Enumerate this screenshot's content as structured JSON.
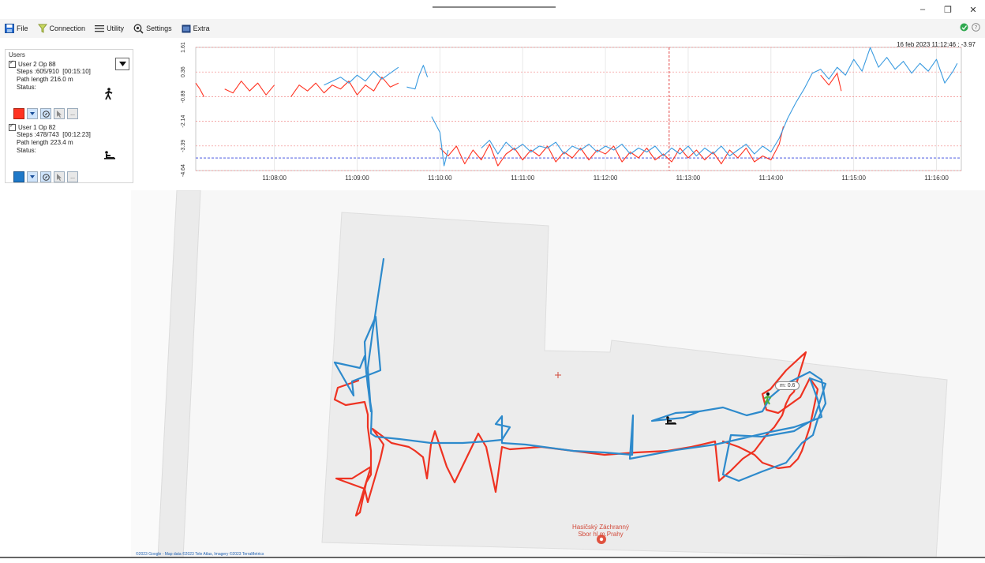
{
  "menu": {
    "file": "File",
    "connection": "Connection",
    "utility": "Utility",
    "settings": "Settings",
    "extra": "Extra"
  },
  "users_panel": {
    "title": "Users",
    "users": [
      {
        "name": "User 2 Op 88",
        "steps": "Steps :605/910",
        "duration": "[00:15:10]",
        "path_length": "Path length 216.0 m",
        "status_label": "Status:",
        "color": "#ff3322"
      },
      {
        "name": "User 1 Op 82",
        "steps": "Steps :478/743",
        "duration": "[00:12:23]",
        "path_length": "Path length 223.4 m",
        "status_label": "Status:",
        "color": "#1e78c8"
      }
    ],
    "more_label": "..."
  },
  "chart_data": {
    "type": "line",
    "timestamp_readout": "16 feb 2023 11:12:46 ; -3.97",
    "y_tick_labels": [
      "1.61",
      "0.36",
      "-0.89",
      "-2.14",
      "-3.39",
      "-4.64"
    ],
    "y_ticks": [
      1.61,
      0.36,
      -0.89,
      -2.14,
      -3.39,
      -4.64
    ],
    "ylim": [
      -4.64,
      1.61
    ],
    "x_tick_labels": [
      "11:08:00",
      "11:09:00",
      "11:10:00",
      "11:11:00",
      "11:12:00",
      "11:13:00",
      "11:14:00",
      "11:15:00",
      "11:16:00"
    ],
    "x_tick_minutes": [
      8,
      9,
      10,
      11,
      12,
      13,
      14,
      15,
      16
    ],
    "xlim_minutes": [
      7.05,
      16.3
    ],
    "cursor_minute": 12.77,
    "blue_reference_level": -4.0,
    "grid": true,
    "series": [
      {
        "color": "#ff3322",
        "segments": [
          [
            [
              7.05,
              -0.2
            ],
            [
              7.1,
              -0.5
            ],
            [
              7.15,
              -0.9
            ]
          ],
          [
            [
              7.4,
              -0.5
            ],
            [
              7.5,
              -0.7
            ],
            [
              7.6,
              -0.1
            ],
            [
              7.7,
              -0.6
            ],
            [
              7.8,
              -0.2
            ],
            [
              7.9,
              -0.8
            ],
            [
              8.0,
              -0.3
            ]
          ],
          [
            [
              8.2,
              -0.9
            ],
            [
              8.3,
              -0.3
            ],
            [
              8.4,
              -0.6
            ],
            [
              8.5,
              -0.2
            ],
            [
              8.6,
              -0.7
            ],
            [
              8.7,
              -0.3
            ],
            [
              8.8,
              -0.5
            ],
            [
              8.9,
              -0.1
            ],
            [
              9.0,
              -0.8
            ],
            [
              9.1,
              -0.3
            ],
            [
              9.2,
              -0.6
            ],
            [
              9.3,
              0.1
            ],
            [
              9.4,
              -0.4
            ],
            [
              9.5,
              -0.2
            ]
          ],
          [
            [
              10.0,
              -3.5
            ],
            [
              10.1,
              -3.9
            ],
            [
              10.2,
              -3.4
            ],
            [
              10.3,
              -4.3
            ],
            [
              10.4,
              -3.6
            ],
            [
              10.5,
              -4.1
            ],
            [
              10.6,
              -3.3
            ],
            [
              10.7,
              -4.4
            ],
            [
              10.8,
              -3.8
            ],
            [
              10.9,
              -3.5
            ],
            [
              11.0,
              -4.1
            ],
            [
              11.1,
              -3.6
            ],
            [
              11.2,
              -3.9
            ],
            [
              11.3,
              -3.4
            ],
            [
              11.4,
              -4.2
            ],
            [
              11.5,
              -3.7
            ],
            [
              11.6,
              -4.0
            ],
            [
              11.7,
              -3.5
            ],
            [
              11.8,
              -4.1
            ],
            [
              11.9,
              -3.6
            ],
            [
              12.0,
              -3.8
            ],
            [
              12.1,
              -3.4
            ],
            [
              12.2,
              -4.2
            ],
            [
              12.3,
              -3.7
            ],
            [
              12.4,
              -4.0
            ],
            [
              12.5,
              -3.5
            ],
            [
              12.6,
              -4.1
            ],
            [
              12.7,
              -3.8
            ],
            [
              12.8,
              -4.2
            ],
            [
              12.9,
              -3.5
            ],
            [
              13.0,
              -4.0
            ],
            [
              13.1,
              -3.6
            ],
            [
              13.2,
              -4.1
            ],
            [
              13.3,
              -3.7
            ],
            [
              13.4,
              -4.3
            ],
            [
              13.5,
              -3.6
            ],
            [
              13.6,
              -4.0
            ],
            [
              13.7,
              -3.5
            ],
            [
              13.8,
              -4.2
            ],
            [
              13.9,
              -3.9
            ],
            [
              14.0,
              -4.1
            ],
            [
              14.1,
              -3.3
            ],
            [
              14.15,
              -2.4
            ]
          ],
          [
            [
              14.6,
              0.2
            ],
            [
              14.7,
              -0.3
            ],
            [
              14.8,
              0.3
            ],
            [
              14.85,
              -0.6
            ]
          ]
        ]
      },
      {
        "color": "#3a9be0",
        "segments": [
          [
            [
              8.6,
              -0.3
            ],
            [
              8.7,
              -0.1
            ],
            [
              8.8,
              0.1
            ],
            [
              8.9,
              -0.2
            ],
            [
              9.0,
              0.2
            ],
            [
              9.1,
              -0.1
            ],
            [
              9.2,
              0.4
            ],
            [
              9.3,
              0.0
            ],
            [
              9.4,
              0.3
            ],
            [
              9.5,
              0.6
            ]
          ],
          [
            [
              9.6,
              -0.4
            ],
            [
              9.7,
              -0.5
            ],
            [
              9.75,
              0.2
            ],
            [
              9.8,
              0.7
            ],
            [
              9.85,
              0.1
            ]
          ],
          [
            [
              9.9,
              -1.9
            ],
            [
              10.0,
              -2.7
            ],
            [
              10.05,
              -4.4
            ],
            [
              10.1,
              -3.6
            ]
          ],
          [
            [
              10.5,
              -3.5
            ],
            [
              10.6,
              -3.1
            ],
            [
              10.7,
              -3.8
            ],
            [
              10.8,
              -3.2
            ],
            [
              10.9,
              -3.6
            ],
            [
              11.0,
              -3.3
            ],
            [
              11.1,
              -3.7
            ],
            [
              11.2,
              -3.4
            ],
            [
              11.3,
              -3.5
            ],
            [
              11.4,
              -3.2
            ],
            [
              11.5,
              -3.8
            ],
            [
              11.6,
              -3.4
            ],
            [
              11.7,
              -3.6
            ],
            [
              11.8,
              -3.3
            ],
            [
              11.9,
              -3.7
            ],
            [
              12.0,
              -3.4
            ],
            [
              12.1,
              -3.6
            ],
            [
              12.2,
              -3.3
            ],
            [
              12.3,
              -3.8
            ],
            [
              12.4,
              -3.5
            ],
            [
              12.5,
              -3.7
            ],
            [
              12.6,
              -3.4
            ],
            [
              12.7,
              -3.9
            ],
            [
              12.8,
              -3.5
            ],
            [
              12.9,
              -3.8
            ],
            [
              13.0,
              -3.4
            ],
            [
              13.1,
              -3.9
            ],
            [
              13.2,
              -3.5
            ],
            [
              13.3,
              -3.8
            ],
            [
              13.4,
              -3.4
            ],
            [
              13.5,
              -3.9
            ],
            [
              13.6,
              -3.6
            ],
            [
              13.7,
              -3.3
            ],
            [
              13.8,
              -3.8
            ],
            [
              13.9,
              -3.4
            ],
            [
              14.0,
              -3.7
            ],
            [
              14.1,
              -3.0
            ],
            [
              14.2,
              -2.0
            ],
            [
              14.3,
              -1.2
            ],
            [
              14.4,
              -0.5
            ],
            [
              14.5,
              0.3
            ],
            [
              14.6,
              0.5
            ],
            [
              14.7,
              0.0
            ],
            [
              14.8,
              0.6
            ],
            [
              14.9,
              0.2
            ],
            [
              15.0,
              1.0
            ],
            [
              15.1,
              0.4
            ],
            [
              15.2,
              1.6
            ],
            [
              15.3,
              0.6
            ],
            [
              15.4,
              1.1
            ],
            [
              15.5,
              0.5
            ],
            [
              15.6,
              0.9
            ],
            [
              15.7,
              0.3
            ],
            [
              15.8,
              0.8
            ],
            [
              15.9,
              0.4
            ],
            [
              16.0,
              1.0
            ],
            [
              16.1,
              -0.2
            ],
            [
              16.2,
              0.4
            ],
            [
              16.25,
              0.8
            ]
          ]
        ]
      }
    ]
  },
  "map": {
    "tooltip": "m: 0.6",
    "poi_name_line1": "Hasičský Záchranný",
    "poi_name_line2": "Sbor hl.m.Prahy",
    "attribution": "©2023 Google - Map data ©2023 Tele Atlas, Imagery ©2023 TerraMetrics",
    "red_color": "#ee3322",
    "blue_color": "#2d8acc"
  }
}
